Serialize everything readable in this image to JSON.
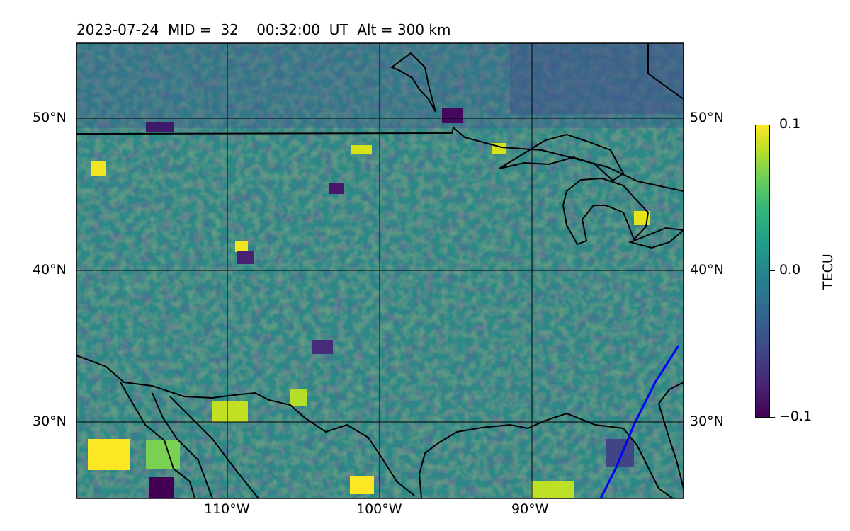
{
  "title": "2023-07-24  MID =  32    00:32:00  UT  Alt = 300 km",
  "lat_labels": [
    "50°N",
    "40°N",
    "30°N"
  ],
  "lon_labels": [
    "110°W",
    "100°W",
    "90°W"
  ],
  "colorbar": {
    "label": "TECU",
    "ticks": [
      "0.1",
      "0.0",
      "−0.1"
    ],
    "colormap": "viridis",
    "range": [
      -0.1,
      0.1
    ]
  },
  "colors": {
    "coastline": "#000000",
    "terminator": "#0000ff",
    "gridline": "#000000"
  },
  "map_extent": {
    "lon": [
      -120,
      -80
    ],
    "lat": [
      25,
      55
    ]
  }
}
